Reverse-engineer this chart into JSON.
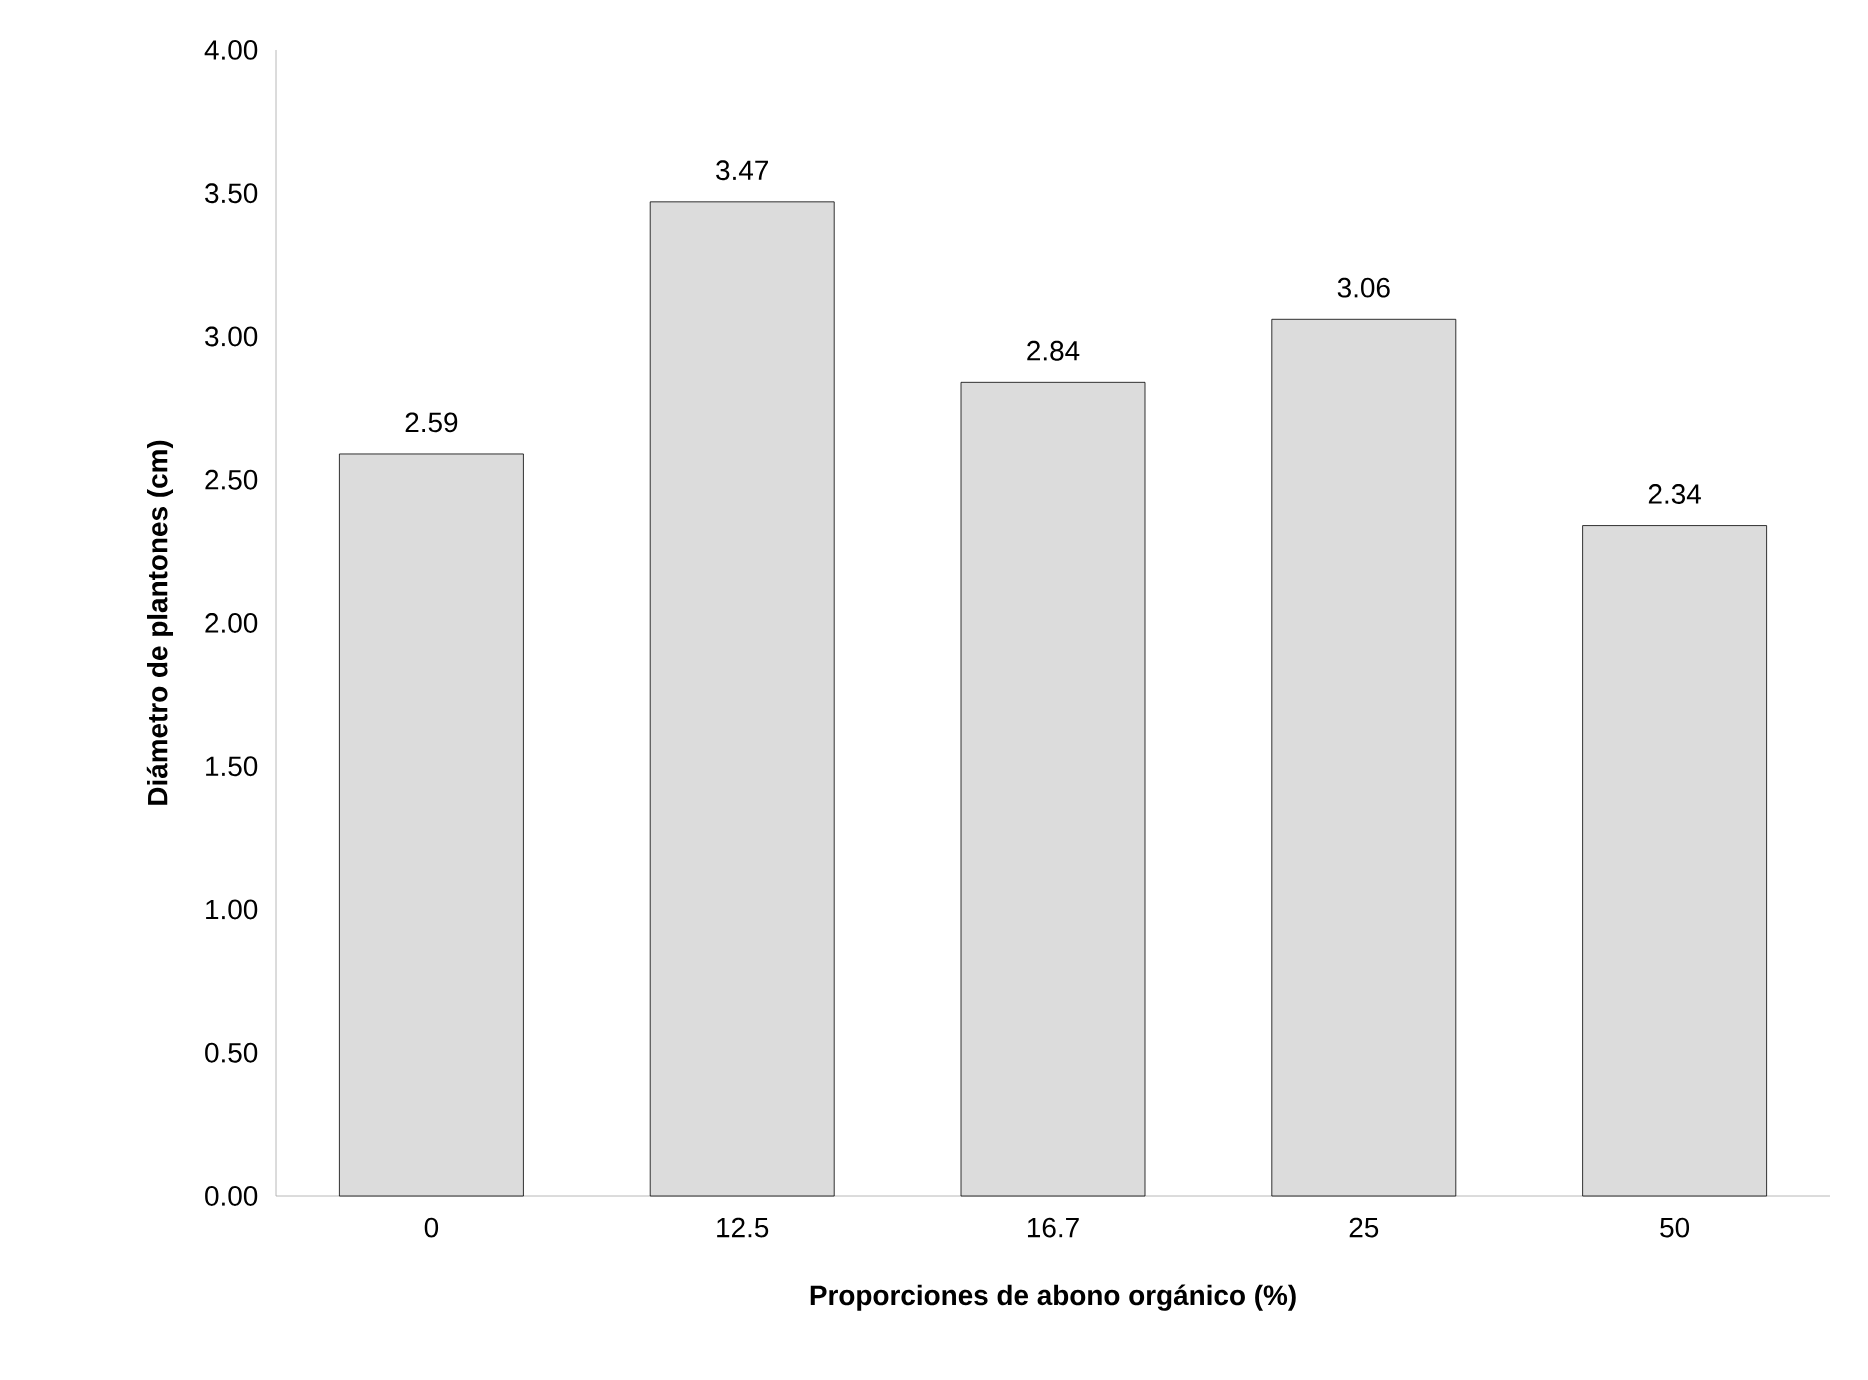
{
  "chart_data": {
    "type": "bar",
    "xlabel": "Proporciones de abono orgánico (%)",
    "ylabel": "Diámetro de plantones (cm)",
    "categories": [
      "0",
      "12.5",
      "16.7",
      "25",
      "50"
    ],
    "values": [
      2.59,
      3.47,
      2.84,
      3.06,
      2.34
    ],
    "color": "#dcdcdc",
    "ylim": [
      0,
      4
    ],
    "yticks": [
      {
        "value": 0,
        "label": "0.00"
      },
      {
        "value": 0.5,
        "label": "0.50"
      },
      {
        "value": 1,
        "label": "1.00"
      },
      {
        "value": 1.5,
        "label": "1.50"
      },
      {
        "value": 2,
        "label": "2.00"
      },
      {
        "value": 2.5,
        "label": "2.50"
      },
      {
        "value": 3,
        "label": "3.00"
      },
      {
        "value": 3.5,
        "label": "3.50"
      },
      {
        "value": 4,
        "label": "4.00"
      }
    ],
    "data_labels": true
  }
}
